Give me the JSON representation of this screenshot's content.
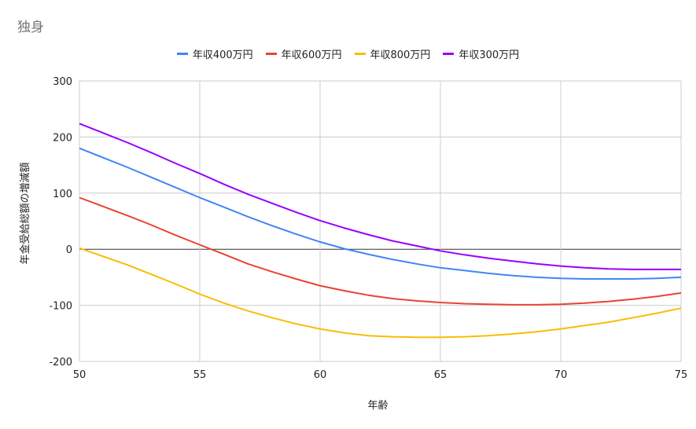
{
  "chart_data": {
    "type": "line",
    "title": "独身",
    "xlabel": "年齢",
    "ylabel": "年金受給総額の増減額",
    "xlim": [
      50,
      75
    ],
    "ylim": [
      -200,
      300
    ],
    "x_ticks": [
      50,
      55,
      60,
      65,
      70,
      75
    ],
    "y_ticks": [
      300,
      200,
      100,
      0,
      -100,
      -200
    ],
    "grid": true,
    "legend_position": "top",
    "x": [
      50,
      51,
      52,
      53,
      54,
      55,
      56,
      57,
      58,
      59,
      60,
      61,
      62,
      63,
      64,
      65,
      66,
      67,
      68,
      69,
      70,
      71,
      72,
      73,
      74,
      75
    ],
    "series": [
      {
        "name": "年収400万円",
        "color": "#4285f4",
        "values": [
          180,
          163,
          146,
          128,
          110,
          92,
          75,
          58,
          42,
          27,
          13,
          1,
          -9,
          -18,
          -26,
          -33,
          -38,
          -43,
          -47,
          -50,
          -52,
          -53,
          -53,
          -53,
          -52,
          -50
        ]
      },
      {
        "name": "年収600万円",
        "color": "#ea4335",
        "values": [
          92,
          76,
          60,
          43,
          25,
          8,
          -9,
          -26,
          -40,
          -53,
          -65,
          -74,
          -82,
          -88,
          -92,
          -95,
          -97,
          -98,
          -99,
          -99,
          -98,
          -96,
          -93,
          -89,
          -84,
          -78
        ]
      },
      {
        "name": "年収800万円",
        "color": "#fbbc04",
        "values": [
          2,
          -13,
          -28,
          -45,
          -62,
          -80,
          -96,
          -110,
          -122,
          -133,
          -142,
          -149,
          -154,
          -156,
          -157,
          -157,
          -156,
          -154,
          -151,
          -147,
          -142,
          -136,
          -130,
          -122,
          -114,
          -105
        ]
      },
      {
        "name": "年収300万円",
        "color": "#9900ff",
        "values": [
          224,
          207,
          190,
          172,
          153,
          135,
          116,
          98,
          82,
          66,
          51,
          38,
          26,
          15,
          6,
          -3,
          -10,
          -16,
          -21,
          -26,
          -30,
          -33,
          -35,
          -36,
          -36,
          -36
        ]
      }
    ]
  }
}
